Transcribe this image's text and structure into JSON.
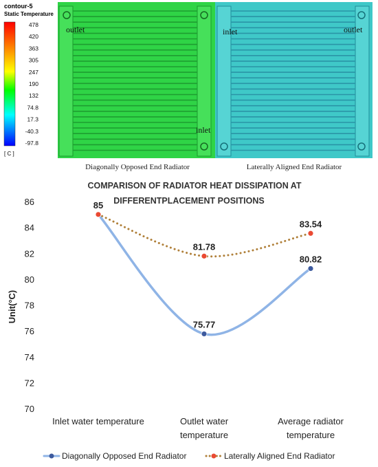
{
  "colorbar": {
    "title_line1": "contour-5",
    "title_line2": "Static Temperature",
    "ticks": [
      "478",
      "420",
      "363",
      "305",
      "247",
      "190",
      "132",
      "74.8",
      "17.3",
      "-40.3",
      "-97.8"
    ],
    "unit": "[ C ]",
    "colors": [
      "#ff0000",
      "#ff7f00",
      "#ffff00",
      "#00ff00",
      "#00ffff",
      "#0000ff"
    ]
  },
  "panels": [
    {
      "caption": "Diagonally Opposed End Radiator",
      "labels": [
        "outlet",
        "inlet"
      ],
      "fill": "#35d84a"
    },
    {
      "caption": "Laterally Aligned End Radiator",
      "labels": [
        "inlet",
        "outlet"
      ],
      "fill": "#3fc7c6"
    }
  ],
  "chart_data": {
    "type": "line",
    "title_line1": "COMPARISON OF RADIATOR HEAT DISSIPATION AT",
    "title_line2": "DIFFERENTPLACEMENT POSITIONS",
    "ylabel": "Unit(°C)",
    "ylim": [
      70,
      86
    ],
    "yticks": [
      "86",
      "84",
      "82",
      "80",
      "78",
      "76",
      "74",
      "72",
      "70"
    ],
    "categories": [
      [
        "Inlet water temperature"
      ],
      [
        "Outlet water",
        "temperature"
      ],
      [
        "Average radiator",
        "temperature"
      ]
    ],
    "series": [
      {
        "name": "Diagonally Opposed End Radiator",
        "values": [
          85,
          75.77,
          80.82
        ],
        "labels": [
          "85",
          "75.77",
          "80.82"
        ],
        "line_color": "#8fb4e6",
        "marker_color": "#3d5a9e",
        "style": "solid"
      },
      {
        "name": "Laterally Aligned End Radiator",
        "values": [
          85,
          81.78,
          83.54
        ],
        "labels": [
          "",
          "81.78",
          "83.54"
        ],
        "line_color": "#b0803a",
        "marker_color": "#ea4a33",
        "style": "dotted"
      }
    ],
    "legend_position": "bottom",
    "grid": false
  }
}
